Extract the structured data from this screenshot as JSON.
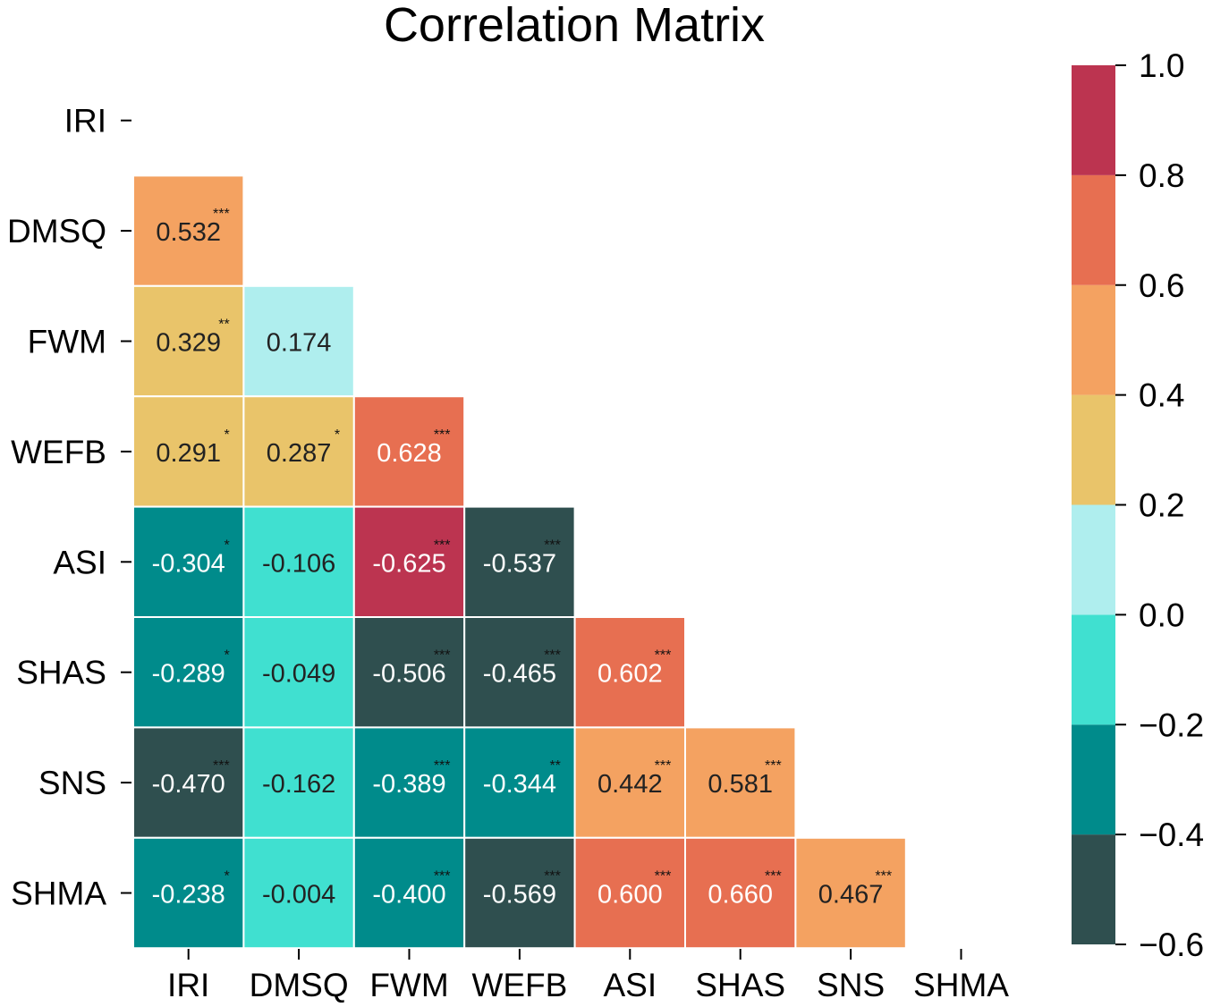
{
  "chart_data": {
    "type": "heatmap",
    "title": "Correlation Matrix",
    "variables": [
      "IRI",
      "DMSQ",
      "FWM",
      "WEFB",
      "ASI",
      "SHAS",
      "SNS",
      "SHMA"
    ],
    "mask": "upper-triangle-and-diagonal",
    "matrix": [
      [
        null,
        null,
        null,
        null,
        null,
        null,
        null,
        null
      ],
      [
        0.532,
        null,
        null,
        null,
        null,
        null,
        null,
        null
      ],
      [
        0.329,
        0.174,
        null,
        null,
        null,
        null,
        null,
        null
      ],
      [
        0.291,
        0.287,
        0.628,
        null,
        null,
        null,
        null,
        null
      ],
      [
        -0.304,
        -0.106,
        -0.625,
        -0.537,
        null,
        null,
        null,
        null
      ],
      [
        -0.289,
        -0.049,
        -0.506,
        -0.465,
        0.602,
        null,
        null,
        null
      ],
      [
        -0.47,
        -0.162,
        -0.389,
        -0.344,
        0.442,
        0.581,
        null,
        null
      ],
      [
        -0.238,
        -0.004,
        -0.4,
        -0.569,
        0.6,
        0.66,
        0.467,
        null
      ]
    ],
    "labels": [
      [
        null,
        null,
        null,
        null,
        null,
        null,
        null,
        null
      ],
      [
        "0.532",
        null,
        null,
        null,
        null,
        null,
        null,
        null
      ],
      [
        "0.329",
        "0.174",
        null,
        null,
        null,
        null,
        null,
        null
      ],
      [
        "0.291",
        "0.287",
        "0.628",
        null,
        null,
        null,
        null,
        null
      ],
      [
        "-0.304",
        "-0.106",
        "-0.625",
        "-0.537",
        null,
        null,
        null,
        null
      ],
      [
        "-0.289",
        "-0.049",
        "-0.506",
        "-0.465",
        "0.602",
        null,
        null,
        null
      ],
      [
        "-0.470",
        "-0.162",
        "-0.389",
        "-0.344",
        "0.442",
        "0.581",
        null,
        null
      ],
      [
        "-0.238",
        "-0.004",
        "-0.400",
        "-0.569",
        "0.600",
        "0.660",
        "0.467",
        null
      ]
    ],
    "significance": [
      [
        null,
        null,
        null,
        null,
        null,
        null,
        null,
        null
      ],
      [
        "***",
        null,
        null,
        null,
        null,
        null,
        null,
        null
      ],
      [
        "**",
        "",
        null,
        null,
        null,
        null,
        null,
        null
      ],
      [
        "*",
        "*",
        "***",
        null,
        null,
        null,
        null,
        null
      ],
      [
        "*",
        "",
        "***",
        "***",
        null,
        null,
        null,
        null
      ],
      [
        "*",
        "",
        "***",
        "***",
        "***",
        null,
        null,
        null
      ],
      [
        "***",
        "",
        "***",
        "**",
        "***",
        "***",
        null,
        null
      ],
      [
        "*",
        "",
        "***",
        "***",
        "***",
        "***",
        "***",
        null
      ]
    ],
    "colorbar": {
      "range": [
        -0.6,
        1.0
      ],
      "ticks": [
        "1.0",
        "0.8",
        "0.6",
        "0.4",
        "0.2",
        "0.0",
        "−0.2",
        "−0.4",
        "−0.6"
      ],
      "tick_values": [
        1.0,
        0.8,
        0.6,
        0.4,
        0.2,
        0.0,
        -0.2,
        -0.4,
        -0.6
      ],
      "bins": [
        {
          "from": -0.6,
          "to": -0.4,
          "color": "#2f4f4f"
        },
        {
          "from": -0.4,
          "to": -0.2,
          "color": "#008b8b"
        },
        {
          "from": -0.2,
          "to": 0.0,
          "color": "#40e0d0"
        },
        {
          "from": 0.0,
          "to": 0.2,
          "color": "#afeeee"
        },
        {
          "from": 0.2,
          "to": 0.4,
          "color": "#e9c46a"
        },
        {
          "from": 0.4,
          "to": 0.6,
          "color": "#f4a261"
        },
        {
          "from": 0.6,
          "to": 0.8,
          "color": "#e76f51"
        },
        {
          "from": 0.8,
          "to": 1.0,
          "color": "#bc3450"
        }
      ]
    }
  }
}
